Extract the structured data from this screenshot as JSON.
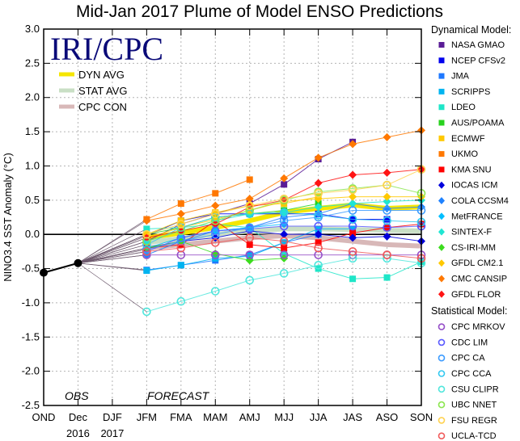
{
  "chart_data": {
    "type": "line",
    "title": "Mid-Jan 2017 Plume of Model ENSO Predictions",
    "brand": "IRI/CPC",
    "ylabel": "NINO3.4 SST Anomaly (°C)",
    "xlabel": "",
    "ylim": [
      -2.5,
      3.0
    ],
    "yticks": [
      "3.0",
      "2.5",
      "2.0",
      "1.5",
      "1.0",
      "0.5",
      "0.0",
      "-0.5",
      "-1.0",
      "-1.5",
      "-2.0",
      "-2.5"
    ],
    "ytick_values": [
      3.0,
      2.5,
      2.0,
      1.5,
      1.0,
      0.5,
      0.0,
      -0.5,
      -1.0,
      -1.5,
      -2.0,
      -2.5
    ],
    "categories": [
      "OND",
      "Dec",
      "DJF",
      "JFM",
      "FMA",
      "MAM",
      "AMJ",
      "MJJ",
      "JJA",
      "JAS",
      "ASO",
      "SON"
    ],
    "year_labels": [
      {
        "label": "2016",
        "at": "Dec"
      },
      {
        "label": "2017",
        "at": "DJF"
      }
    ],
    "annotations": [
      {
        "text": "OBS",
        "at": "Dec"
      },
      {
        "text": "FORECAST",
        "at": "FMA"
      }
    ],
    "grid": true,
    "observed": {
      "name": "OBS",
      "x": [
        "OND",
        "Dec"
      ],
      "values": [
        -0.56,
        -0.42
      ],
      "color": "#000000"
    },
    "forecast_start_index": 3,
    "averages": [
      {
        "name": "DYN AVG",
        "color": "#f5e600",
        "values": [
          -0.05,
          0.02,
          0.1,
          0.2,
          0.32,
          0.38,
          0.43,
          0.38,
          0.4
        ]
      },
      {
        "name": "STAT AVG",
        "color": "#c9dfc5",
        "values": [
          -0.12,
          -0.06,
          0.0,
          0.05,
          0.08,
          0.08,
          0.07,
          0.06,
          0.05
        ]
      },
      {
        "name": "CPC CON",
        "color": "#d8b8b8",
        "values": [
          -0.2,
          -0.15,
          -0.1,
          -0.05,
          -0.02,
          -0.05,
          -0.1,
          -0.15,
          -0.17
        ]
      }
    ],
    "legend_position": "right",
    "legend_headers": {
      "dynamical": "Dynamical Model:",
      "statistical": "Statistical Model:"
    },
    "series": [
      {
        "name": "NASA GMAO",
        "group": "dynamical",
        "marker": "square",
        "color": "#5a1c96",
        "values": [
          -0.1,
          0.15,
          0.3,
          0.45,
          0.73,
          1.1,
          1.35,
          null,
          null
        ]
      },
      {
        "name": "NCEP CFSv2",
        "group": "dynamical",
        "marker": "square",
        "color": "#0000ee",
        "values": [
          -0.02,
          0.2,
          0.3,
          0.3,
          0.3,
          0.3,
          0.22,
          0.22,
          null
        ]
      },
      {
        "name": "JMA",
        "group": "dynamical",
        "marker": "square",
        "color": "#1e78ff",
        "values": [
          -0.52,
          -0.45,
          -0.38,
          -0.3,
          -0.12,
          0.0,
          null,
          null,
          null
        ]
      },
      {
        "name": "SCRIPPS",
        "group": "dynamical",
        "marker": "square",
        "color": "#00b4f0",
        "values": [
          -0.53,
          -0.45,
          -0.35,
          -0.32,
          -0.12,
          0.08,
          0.08,
          null,
          null
        ]
      },
      {
        "name": "LDEO",
        "group": "dynamical",
        "marker": "square",
        "color": "#1ee6c8",
        "values": [
          0.08,
          0.1,
          0.15,
          0.1,
          -0.28,
          -0.5,
          -0.65,
          -0.63,
          -0.4
        ]
      },
      {
        "name": "AUS/POAMA",
        "group": "dynamical",
        "marker": "square",
        "color": "#28d21e",
        "values": [
          0.0,
          0.1,
          0.25,
          0.3,
          0.35,
          0.45,
          null,
          null,
          null
        ]
      },
      {
        "name": "ECMWF",
        "group": "dynamical",
        "marker": "square",
        "color": "#ffc800",
        "values": [
          0.0,
          0.2,
          0.32,
          0.42,
          0.45,
          0.55,
          null,
          null,
          null
        ]
      },
      {
        "name": "UKMO",
        "group": "dynamical",
        "marker": "square",
        "color": "#ff7800",
        "values": [
          0.22,
          0.45,
          0.6,
          0.8,
          null,
          null,
          null,
          null,
          null
        ]
      },
      {
        "name": "KMA SNU",
        "group": "dynamical",
        "marker": "square",
        "color": "#ff0000",
        "values": [
          -0.2,
          -0.15,
          0.2,
          -0.15,
          -0.2,
          -0.12,
          0.02,
          0.1,
          0.15
        ]
      },
      {
        "name": "IOCAS ICM",
        "group": "dynamical",
        "marker": "diamond",
        "color": "#0000dc",
        "values": [
          -0.2,
          -0.1,
          -0.05,
          0.05,
          0.0,
          0.0,
          -0.05,
          -0.03,
          -0.1
        ]
      },
      {
        "name": "COLA CCSM4",
        "group": "dynamical",
        "marker": "diamond",
        "color": "#1e82ff",
        "values": [
          -0.3,
          -0.1,
          0.05,
          0.1,
          0.25,
          0.3,
          0.45,
          0.38,
          0.4
        ]
      },
      {
        "name": "MetFRANCE",
        "group": "dynamical",
        "marker": "diamond",
        "color": "#00beff",
        "values": [
          -0.2,
          -0.05,
          0.05,
          0.1,
          0.15,
          null,
          null,
          null,
          null
        ]
      },
      {
        "name": "SINTEX-F",
        "group": "dynamical",
        "marker": "diamond",
        "color": "#1ee6d2",
        "values": [
          -0.1,
          0.05,
          0.2,
          0.3,
          0.32,
          0.4,
          0.45,
          0.48,
          0.5
        ]
      },
      {
        "name": "CS-IRI-MM",
        "group": "dynamical",
        "marker": "diamond",
        "color": "#3cdc1e",
        "values": [
          -0.2,
          -0.1,
          -0.28,
          -0.38,
          -0.35,
          null,
          null,
          null,
          null
        ]
      },
      {
        "name": "GFDL CM2.1",
        "group": "dynamical",
        "marker": "diamond",
        "color": "#ffc800",
        "values": [
          -0.05,
          0.1,
          0.22,
          0.35,
          0.48,
          0.52,
          0.55,
          0.55,
          0.55
        ]
      },
      {
        "name": "CMC CANSIP",
        "group": "dynamical",
        "marker": "diamond",
        "color": "#ff7800",
        "values": [
          0.2,
          0.3,
          0.42,
          0.52,
          0.82,
          1.12,
          1.32,
          1.42,
          1.52
        ]
      },
      {
        "name": "GFDL FLOR",
        "group": "dynamical",
        "marker": "diamond",
        "color": "#ff1414",
        "values": [
          -0.05,
          0.05,
          0.15,
          0.4,
          0.5,
          0.75,
          0.87,
          0.9,
          0.95
        ]
      },
      {
        "name": "CPC MRKOV",
        "group": "statistical",
        "marker": "circle",
        "color": "#9650c8",
        "values": [
          -0.3,
          -0.3,
          -0.3,
          -0.3,
          -0.3,
          -0.3,
          -0.3,
          -0.3,
          -0.3
        ]
      },
      {
        "name": "CDC LIM",
        "group": "statistical",
        "marker": "circle",
        "color": "#5a5aff",
        "values": [
          -0.25,
          -0.05,
          0.05,
          0.08,
          0.12,
          0.12,
          0.12,
          0.1,
          0.12
        ]
      },
      {
        "name": "CPC CA",
        "group": "statistical",
        "marker": "circle",
        "color": "#3c9bff",
        "values": [
          -0.22,
          -0.1,
          0.0,
          0.1,
          0.2,
          0.25,
          0.35,
          0.35,
          0.35
        ]
      },
      {
        "name": "CPC CCA",
        "group": "statistical",
        "marker": "circle",
        "color": "#32c8f0",
        "values": [
          -0.15,
          0.1,
          0.25,
          0.3,
          0.32,
          0.28,
          0.22,
          0.2,
          0.18
        ]
      },
      {
        "name": "CSU CLIPR",
        "group": "statistical",
        "marker": "circle",
        "color": "#50e6dc",
        "values": [
          -1.13,
          -0.98,
          -0.83,
          -0.67,
          -0.57,
          -0.45,
          -0.35,
          -0.35,
          -0.42
        ]
      },
      {
        "name": "UBC NNET",
        "group": "statistical",
        "marker": "circle",
        "color": "#8ce650",
        "values": [
          -0.1,
          0.05,
          0.2,
          0.35,
          0.5,
          0.62,
          0.67,
          0.72,
          0.6
        ]
      },
      {
        "name": "FSU REGR",
        "group": "statistical",
        "marker": "circle",
        "color": "#ffd250",
        "values": [
          0.0,
          0.15,
          0.3,
          0.42,
          0.52,
          0.6,
          0.65,
          0.72,
          0.95
        ]
      },
      {
        "name": "UCLA-TCD",
        "group": "statistical",
        "marker": "circle",
        "color": "#f05a5a",
        "values": [
          -0.25,
          -0.2,
          -0.12,
          -0.05,
          -0.1,
          -0.2,
          -0.25,
          -0.3,
          -0.35
        ]
      }
    ]
  }
}
